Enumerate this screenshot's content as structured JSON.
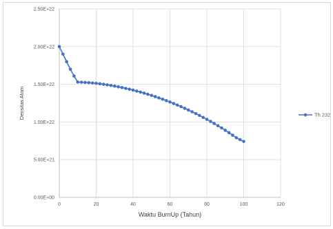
{
  "chart_data": {
    "type": "line",
    "title": "",
    "xlabel": "Waktu BurnUp (Tahun)",
    "ylabel": "Densitas Atom",
    "xlim": [
      0,
      120
    ],
    "ylim": [
      0,
      2.5e+22
    ],
    "x_ticks": [
      "0",
      "20",
      "40",
      "60",
      "80",
      "100",
      "120"
    ],
    "y_ticks": [
      "0.00E+00",
      "5.00E+21",
      "1.00E+22",
      "1.50E+22",
      "2.00E+22",
      "2.50E+22"
    ],
    "grid": true,
    "legend_position": "right",
    "series": [
      {
        "name": "Th 232",
        "color": "#4472c4",
        "marker": "circle",
        "x": [
          0,
          2,
          4,
          6,
          8,
          10,
          12,
          14,
          16,
          18,
          20,
          22,
          24,
          26,
          28,
          30,
          32,
          34,
          36,
          38,
          40,
          42,
          44,
          46,
          48,
          50,
          52,
          54,
          56,
          58,
          60,
          62,
          64,
          66,
          68,
          70,
          72,
          74,
          76,
          78,
          80,
          82,
          84,
          86,
          88,
          90,
          92,
          94,
          96,
          98,
          100
        ],
        "y": [
          2e+22,
          1.9e+22,
          1.8e+22,
          1.7e+22,
          1.61e+22,
          1.53e+22,
          1.528e+22,
          1.525e+22,
          1.522e+22,
          1.518e+22,
          1.513e+22,
          1.507e+22,
          1.5e+22,
          1.493e+22,
          1.485e+22,
          1.476e+22,
          1.467e+22,
          1.457e+22,
          1.446e+22,
          1.435e+22,
          1.423e+22,
          1.41e+22,
          1.397e+22,
          1.383e+22,
          1.368e+22,
          1.353e+22,
          1.337e+22,
          1.32e+22,
          1.302e+22,
          1.284e+22,
          1.265e+22,
          1.245e+22,
          1.225e+22,
          1.204e+22,
          1.182e+22,
          1.159e+22,
          1.136e+22,
          1.112e+22,
          1.087e+22,
          1.061e+22,
          1.035e+22,
          1.008e+22,
          9.8e+21,
          9.51e+21,
          9.21e+21,
          8.9e+21,
          8.58e+21,
          8.25e+21,
          7.91e+21,
          7.66e+21,
          7.42e+21
        ]
      }
    ]
  }
}
